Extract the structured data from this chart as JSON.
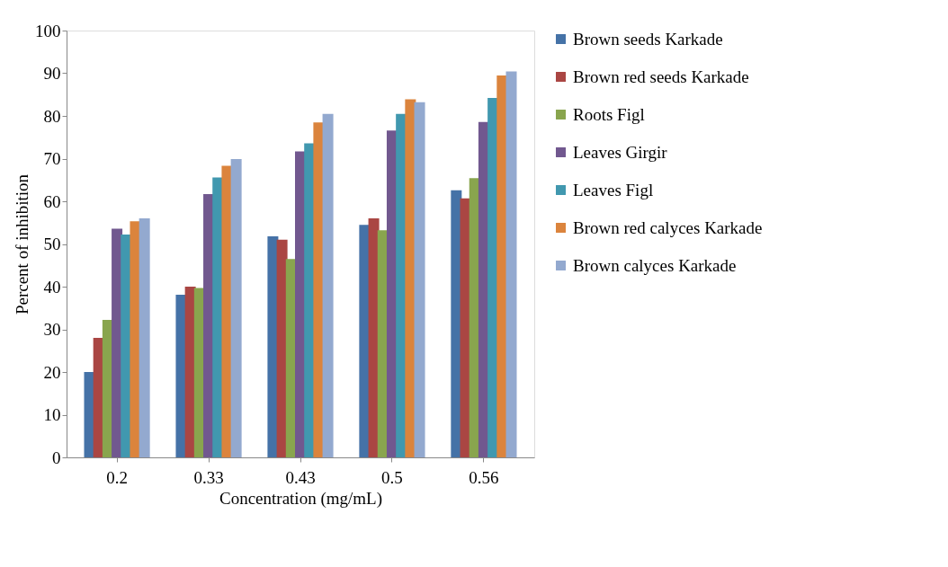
{
  "chart_data": {
    "type": "bar",
    "xlabel": "Concentration (mg/mL)",
    "ylabel": "Percent of  inhibition",
    "categories": [
      "0.2",
      "0.33",
      "0.43",
      "0.5",
      "0.56"
    ],
    "series": [
      {
        "name": "Brown seeds Karkade",
        "color": "#4572a7",
        "values": [
          20,
          38.1,
          51.8,
          54.5,
          62.6
        ]
      },
      {
        "name": "Brown red seeds Karkade",
        "color": "#aa4643",
        "values": [
          28,
          40,
          51,
          56,
          60.7
        ]
      },
      {
        "name": "Roots Figl",
        "color": "#89a54e",
        "values": [
          32.2,
          39.7,
          46.5,
          53.2,
          65.4
        ]
      },
      {
        "name": "Leaves Girgir",
        "color": "#71588f",
        "values": [
          53.6,
          61.7,
          71.7,
          76.6,
          78.6
        ]
      },
      {
        "name": "Leaves Figl",
        "color": "#4198af",
        "values": [
          52.2,
          65.6,
          73.6,
          80.5,
          84.2
        ]
      },
      {
        "name": "Brown red calyces Karkade",
        "color": "#db843d",
        "values": [
          55.3,
          68.3,
          78.5,
          83.9,
          89.5
        ]
      },
      {
        "name": "Brown calyces Karkade",
        "color": "#93a9cf",
        "values": [
          56,
          69.9,
          80.5,
          83.2,
          90.4
        ]
      }
    ],
    "ylim": [
      0,
      100
    ],
    "yticks": [
      0,
      10,
      20,
      30,
      40,
      50,
      60,
      70,
      80,
      90,
      100
    ],
    "grid": false,
    "legend": "right"
  }
}
